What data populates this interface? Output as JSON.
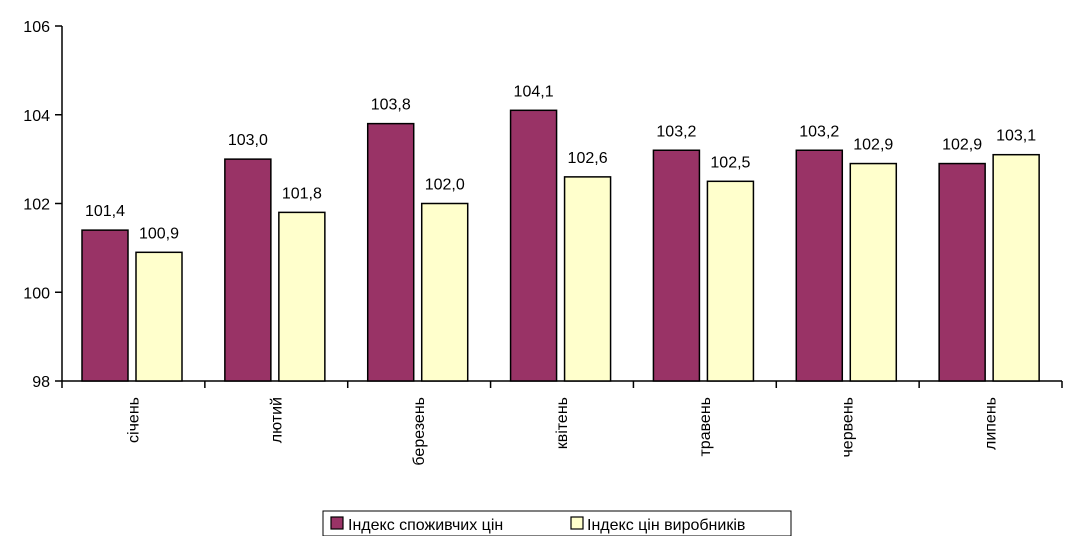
{
  "chart_data": {
    "type": "bar",
    "title": "",
    "xlabel": "",
    "ylabel": "",
    "ylim": [
      98,
      106
    ],
    "yticks": [
      98,
      100,
      102,
      104,
      106
    ],
    "grid": false,
    "legend_position": "bottom",
    "categories": [
      "січень",
      "лютий",
      "березень",
      "квітень",
      "травень",
      "червень",
      "липень"
    ],
    "series": [
      {
        "name": "Індекс споживчих цін",
        "color": "#993366",
        "values": [
          101.4,
          103.0,
          103.8,
          104.1,
          103.2,
          103.2,
          102.9
        ],
        "labels": [
          "101,4",
          "103,0",
          "103,8",
          "104,1",
          "103,2",
          "103,2",
          "102,9"
        ]
      },
      {
        "name": "Індекс цін виробників",
        "color": "#FFFFCC",
        "values": [
          100.9,
          101.8,
          102.0,
          102.6,
          102.5,
          102.9,
          103.1
        ],
        "labels": [
          "100,9",
          "101,8",
          "102,0",
          "102,6",
          "102,5",
          "102,9",
          "103,1"
        ]
      }
    ]
  }
}
